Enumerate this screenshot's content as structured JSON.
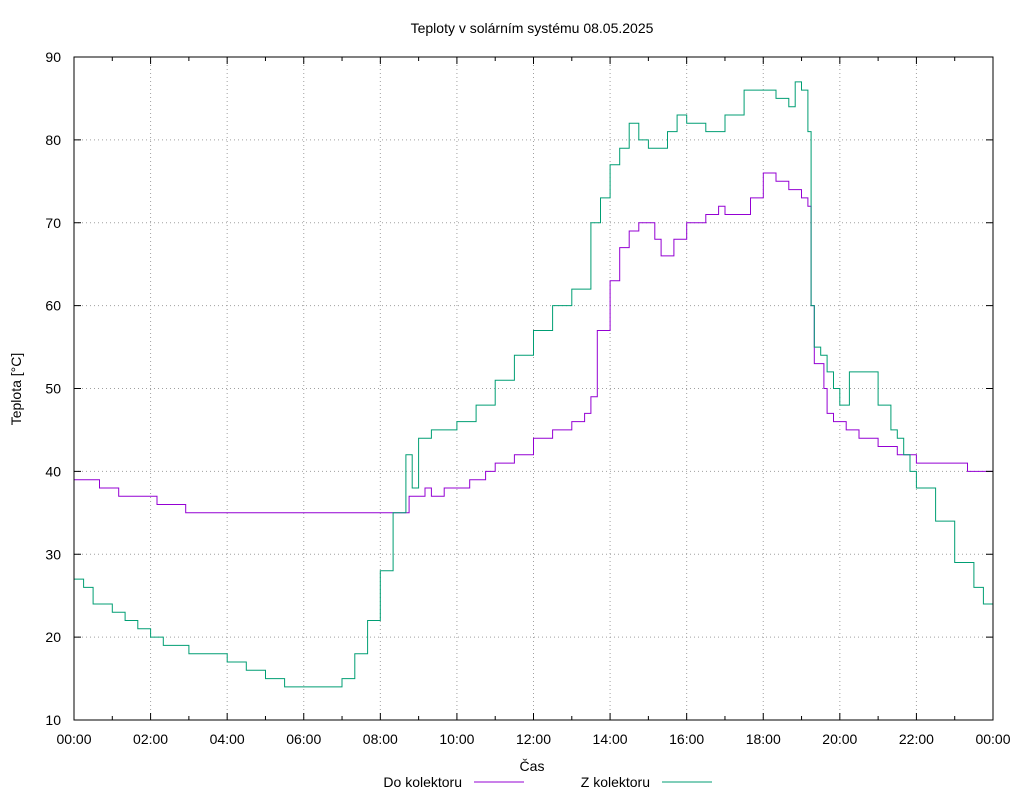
{
  "chart_data": {
    "type": "line",
    "title": "Teploty v solárním systému 08.05.2025",
    "xlabel": "Čas",
    "ylabel": "Teplota [°C]",
    "ylim": [
      10,
      90
    ],
    "xlim": [
      "00:00",
      "24:00"
    ],
    "grid": true,
    "legend_position": "bottom",
    "x_tick_labels": [
      "00:00",
      "02:00",
      "04:00",
      "06:00",
      "08:00",
      "10:00",
      "12:00",
      "14:00",
      "16:00",
      "18:00",
      "20:00",
      "22:00",
      "00:00"
    ],
    "y_ticks": [
      10,
      20,
      30,
      40,
      50,
      60,
      70,
      80,
      90
    ],
    "series": [
      {
        "name": "Do kolektoru",
        "color": "#9400d3",
        "x": [
          "00:00",
          "00:20",
          "00:40",
          "01:10",
          "01:50",
          "02:10",
          "02:55",
          "03:30",
          "04:30",
          "05:30",
          "06:30",
          "07:30",
          "08:00",
          "08:30",
          "08:45",
          "09:00",
          "09:10",
          "09:20",
          "09:40",
          "10:00",
          "10:20",
          "10:45",
          "11:00",
          "11:30",
          "12:00",
          "12:30",
          "13:00",
          "13:20",
          "13:30",
          "13:40",
          "14:00",
          "14:15",
          "14:30",
          "14:45",
          "15:00",
          "15:10",
          "15:20",
          "15:40",
          "16:00",
          "16:30",
          "16:50",
          "17:00",
          "17:20",
          "17:40",
          "18:00",
          "18:20",
          "18:40",
          "19:00",
          "19:10",
          "19:15",
          "19:20",
          "19:35",
          "19:40",
          "19:50",
          "20:00",
          "20:10",
          "20:30",
          "21:00",
          "21:20",
          "21:30",
          "21:40",
          "22:00",
          "22:30",
          "23:00",
          "23:20",
          "23:40",
          "24:00"
        ],
        "y": [
          39,
          39,
          38,
          37,
          37,
          36,
          35,
          35,
          35,
          35,
          35,
          35,
          35,
          35,
          37,
          37,
          38,
          37,
          38,
          38,
          39,
          40,
          41,
          42,
          44,
          45,
          46,
          47,
          49,
          57,
          63,
          67,
          69,
          70,
          70,
          68,
          66,
          68,
          70,
          71,
          72,
          71,
          71,
          73,
          76,
          75,
          74,
          73,
          72,
          60,
          53,
          50,
          47,
          46,
          46,
          45,
          44,
          43,
          43,
          42,
          42,
          41,
          41,
          41,
          40,
          40,
          40
        ]
      },
      {
        "name": "Z kolektoru",
        "color": "#009e73",
        "x": [
          "00:00",
          "00:15",
          "00:30",
          "01:00",
          "01:20",
          "01:40",
          "02:00",
          "02:20",
          "03:00",
          "03:30",
          "04:00",
          "04:30",
          "05:00",
          "05:30",
          "06:00",
          "06:30",
          "07:00",
          "07:20",
          "07:40",
          "08:00",
          "08:20",
          "08:40",
          "08:50",
          "09:00",
          "09:20",
          "09:40",
          "10:00",
          "10:30",
          "11:00",
          "11:30",
          "12:00",
          "12:30",
          "13:00",
          "13:30",
          "13:45",
          "14:00",
          "14:15",
          "14:30",
          "14:45",
          "15:00",
          "15:30",
          "15:45",
          "16:00",
          "16:30",
          "17:00",
          "17:30",
          "18:00",
          "18:20",
          "18:40",
          "18:50",
          "19:00",
          "19:10",
          "19:15",
          "19:20",
          "19:30",
          "19:40",
          "19:50",
          "20:00",
          "20:15",
          "20:30",
          "21:00",
          "21:20",
          "21:30",
          "21:40",
          "21:50",
          "22:00",
          "22:30",
          "23:00",
          "23:30",
          "23:45",
          "24:00"
        ],
        "y": [
          27,
          26,
          24,
          23,
          22,
          21,
          20,
          19,
          18,
          18,
          17,
          16,
          15,
          14,
          14,
          14,
          15,
          18,
          22,
          28,
          35,
          42,
          38,
          44,
          45,
          45,
          46,
          48,
          51,
          54,
          57,
          60,
          62,
          70,
          73,
          77,
          79,
          82,
          80,
          79,
          81,
          83,
          82,
          81,
          83,
          86,
          86,
          85,
          84,
          87,
          86,
          81,
          60,
          55,
          54,
          52,
          50,
          48,
          52,
          52,
          48,
          45,
          44,
          42,
          40,
          38,
          34,
          29,
          26,
          24,
          22
        ]
      }
    ]
  }
}
